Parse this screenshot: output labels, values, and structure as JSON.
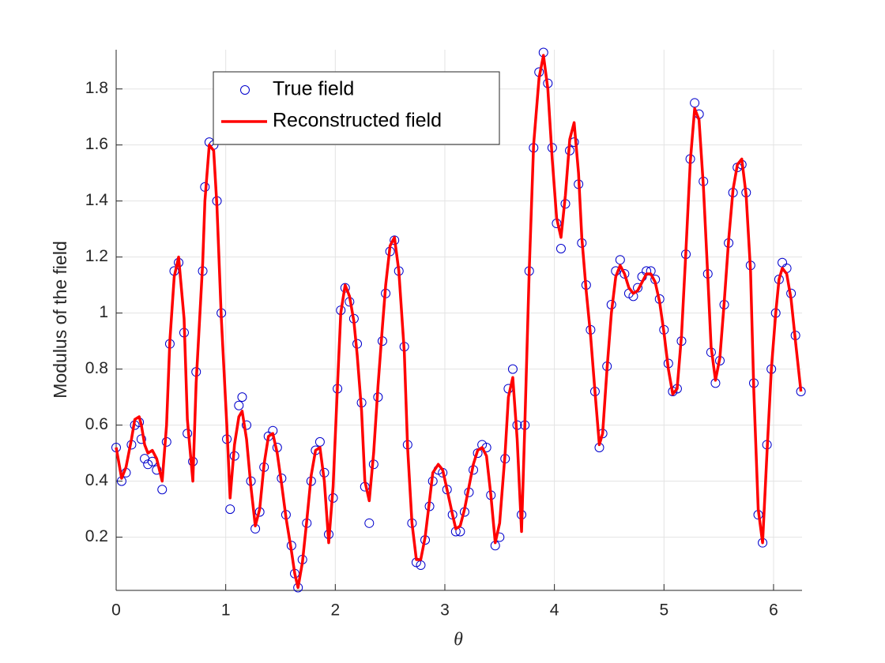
{
  "chart_data": {
    "type": "scatter-line",
    "xlabel": "θ",
    "ylabel": "Modulus of the field",
    "xlim": [
      0,
      6.26
    ],
    "ylim": [
      0.01,
      1.94
    ],
    "xticks": [
      0,
      1,
      2,
      3,
      4,
      5,
      6
    ],
    "yticks": [
      0.2,
      0.4,
      0.6,
      0.8,
      1,
      1.2,
      1.4,
      1.6,
      1.8
    ],
    "grid": true,
    "legend": "northwest",
    "x": [
      0,
      0.05,
      0.09,
      0.14,
      0.17,
      0.21,
      0.23,
      0.26,
      0.29,
      0.33,
      0.37,
      0.42,
      0.46,
      0.49,
      0.53,
      0.57,
      0.62,
      0.65,
      0.7,
      0.73,
      0.79,
      0.81,
      0.85,
      0.89,
      0.92,
      0.96,
      1.01,
      1.04,
      1.08,
      1.12,
      1.15,
      1.19,
      1.23,
      1.27,
      1.31,
      1.35,
      1.39,
      1.43,
      1.47,
      1.51,
      1.55,
      1.6,
      1.63,
      1.66,
      1.7,
      1.74,
      1.78,
      1.82,
      1.86,
      1.9,
      1.94,
      1.98,
      2.02,
      2.05,
      2.09,
      2.13,
      2.17,
      2.2,
      2.24,
      2.27,
      2.31,
      2.35,
      2.39,
      2.43,
      2.46,
      2.5,
      2.54,
      2.58,
      2.63,
      2.66,
      2.7,
      2.74,
      2.78,
      2.82,
      2.86,
      2.89,
      2.94,
      2.98,
      3.02,
      3.07,
      3.1,
      3.14,
      3.18,
      3.22,
      3.26,
      3.3,
      3.34,
      3.38,
      3.42,
      3.46,
      3.5,
      3.55,
      3.58,
      3.62,
      3.66,
      3.7,
      3.73,
      3.77,
      3.81,
      3.86,
      3.9,
      3.94,
      3.98,
      4.02,
      4.06,
      4.1,
      4.14,
      4.18,
      4.22,
      4.25,
      4.29,
      4.33,
      4.37,
      4.41,
      4.44,
      4.48,
      4.52,
      4.56,
      4.6,
      4.64,
      4.68,
      4.72,
      4.76,
      4.8,
      4.84,
      4.88,
      4.92,
      4.96,
      5.0,
      5.04,
      5.08,
      5.12,
      5.16,
      5.2,
      5.24,
      5.28,
      5.32,
      5.36,
      5.4,
      5.43,
      5.47,
      5.51,
      5.55,
      5.59,
      5.63,
      5.67,
      5.71,
      5.75,
      5.79,
      5.82,
      5.86,
      5.9,
      5.94,
      5.98,
      6.02,
      6.05,
      6.08,
      6.12,
      6.16,
      6.2,
      6.25
    ],
    "series": [
      {
        "name": "True field",
        "color": "#0000cc",
        "marker": "circle",
        "values": [
          0.52,
          0.4,
          0.43,
          0.53,
          0.6,
          0.61,
          0.55,
          0.48,
          0.46,
          0.47,
          0.44,
          0.37,
          0.54,
          0.89,
          1.15,
          1.18,
          0.93,
          0.57,
          0.47,
          0.79,
          1.15,
          1.45,
          1.61,
          1.6,
          1.4,
          1.0,
          0.55,
          0.3,
          0.49,
          0.67,
          0.7,
          0.6,
          0.4,
          0.23,
          0.29,
          0.45,
          0.56,
          0.58,
          0.52,
          0.41,
          0.28,
          0.17,
          0.07,
          0.02,
          0.12,
          0.25,
          0.4,
          0.51,
          0.54,
          0.43,
          0.21,
          0.34,
          0.73,
          1.01,
          1.09,
          1.04,
          0.98,
          0.89,
          0.68,
          0.38,
          0.25,
          0.46,
          0.7,
          0.9,
          1.07,
          1.22,
          1.26,
          1.15,
          0.88,
          0.53,
          0.25,
          0.11,
          0.1,
          0.19,
          0.31,
          0.4,
          0.44,
          0.43,
          0.37,
          0.28,
          0.22,
          0.22,
          0.29,
          0.36,
          0.44,
          0.5,
          0.53,
          0.52,
          0.35,
          0.17,
          0.2,
          0.48,
          0.73,
          0.8,
          0.6,
          0.28,
          0.6,
          1.15,
          1.59,
          1.86,
          1.93,
          1.82,
          1.59,
          1.32,
          1.23,
          1.39,
          1.58,
          1.61,
          1.46,
          1.25,
          1.1,
          0.94,
          0.72,
          0.52,
          0.57,
          0.81,
          1.03,
          1.15,
          1.19,
          1.14,
          1.07,
          1.06,
          1.09,
          1.13,
          1.15,
          1.15,
          1.12,
          1.05,
          0.94,
          0.82,
          0.72,
          0.73,
          0.9,
          1.21,
          1.55,
          1.75,
          1.71,
          1.47,
          1.14,
          0.86,
          0.75,
          0.83,
          1.03,
          1.25,
          1.43,
          1.52,
          1.53,
          1.43,
          1.17,
          0.75,
          0.28,
          0.18,
          0.53,
          0.8,
          1.0,
          1.12,
          1.18,
          1.16,
          1.07,
          0.92,
          0.72
        ]
      },
      {
        "name": "Reconstructed field",
        "color": "#ff0000",
        "marker": "line",
        "values": [
          0.52,
          0.41,
          0.45,
          0.55,
          0.62,
          0.63,
          0.6,
          0.53,
          0.5,
          0.51,
          0.48,
          0.4,
          0.6,
          0.9,
          1.13,
          1.2,
          0.98,
          0.62,
          0.4,
          0.75,
          1.18,
          1.4,
          1.6,
          1.58,
          1.38,
          0.98,
          0.6,
          0.34,
          0.53,
          0.63,
          0.65,
          0.55,
          0.38,
          0.24,
          0.3,
          0.46,
          0.56,
          0.57,
          0.5,
          0.39,
          0.27,
          0.15,
          0.07,
          0.02,
          0.11,
          0.26,
          0.42,
          0.51,
          0.52,
          0.4,
          0.18,
          0.38,
          0.74,
          1.0,
          1.1,
          1.06,
          0.97,
          0.85,
          0.65,
          0.4,
          0.33,
          0.5,
          0.74,
          0.95,
          1.1,
          1.24,
          1.27,
          1.15,
          0.86,
          0.52,
          0.25,
          0.12,
          0.12,
          0.2,
          0.33,
          0.43,
          0.46,
          0.44,
          0.37,
          0.28,
          0.23,
          0.24,
          0.3,
          0.38,
          0.46,
          0.51,
          0.52,
          0.49,
          0.35,
          0.18,
          0.25,
          0.5,
          0.7,
          0.77,
          0.55,
          0.22,
          0.6,
          1.15,
          1.6,
          1.84,
          1.92,
          1.8,
          1.55,
          1.34,
          1.27,
          1.42,
          1.62,
          1.68,
          1.5,
          1.27,
          1.08,
          0.92,
          0.72,
          0.53,
          0.57,
          0.8,
          1.0,
          1.13,
          1.17,
          1.14,
          1.09,
          1.07,
          1.08,
          1.11,
          1.14,
          1.14,
          1.11,
          1.04,
          0.93,
          0.8,
          0.71,
          0.73,
          0.92,
          1.22,
          1.54,
          1.73,
          1.69,
          1.45,
          1.13,
          0.88,
          0.76,
          0.84,
          1.04,
          1.26,
          1.44,
          1.53,
          1.55,
          1.42,
          1.15,
          0.72,
          0.3,
          0.18,
          0.5,
          0.8,
          1.0,
          1.12,
          1.16,
          1.14,
          1.05,
          0.9,
          0.72
        ]
      }
    ]
  }
}
